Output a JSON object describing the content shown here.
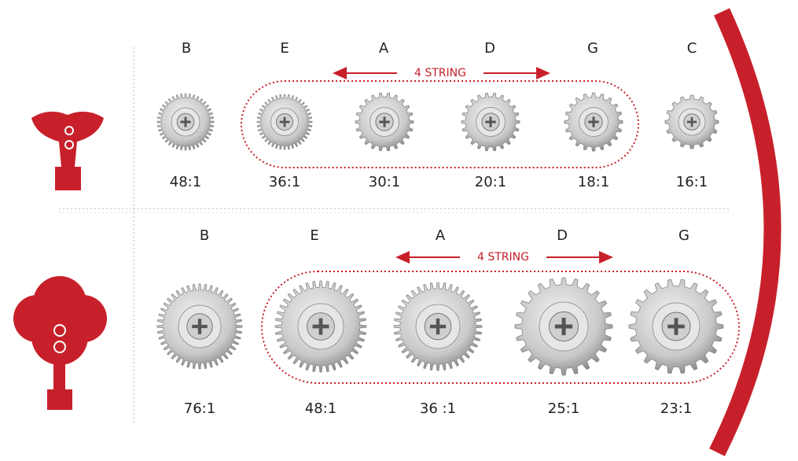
{
  "rows": [
    {
      "notes": [
        "B",
        "E",
        "A",
        "D",
        "G",
        "C"
      ],
      "ratios": [
        "48:1",
        "36:1",
        "30:1",
        "20:1",
        "18:1",
        "16:1"
      ],
      "group_label": "4 STRING"
    },
    {
      "notes": [
        "B",
        "E",
        "A",
        "D",
        "G"
      ],
      "ratios": [
        "76:1",
        "48:1",
        "36 :1",
        "25:1",
        "23:1"
      ],
      "group_label": "4 STRING"
    }
  ]
}
